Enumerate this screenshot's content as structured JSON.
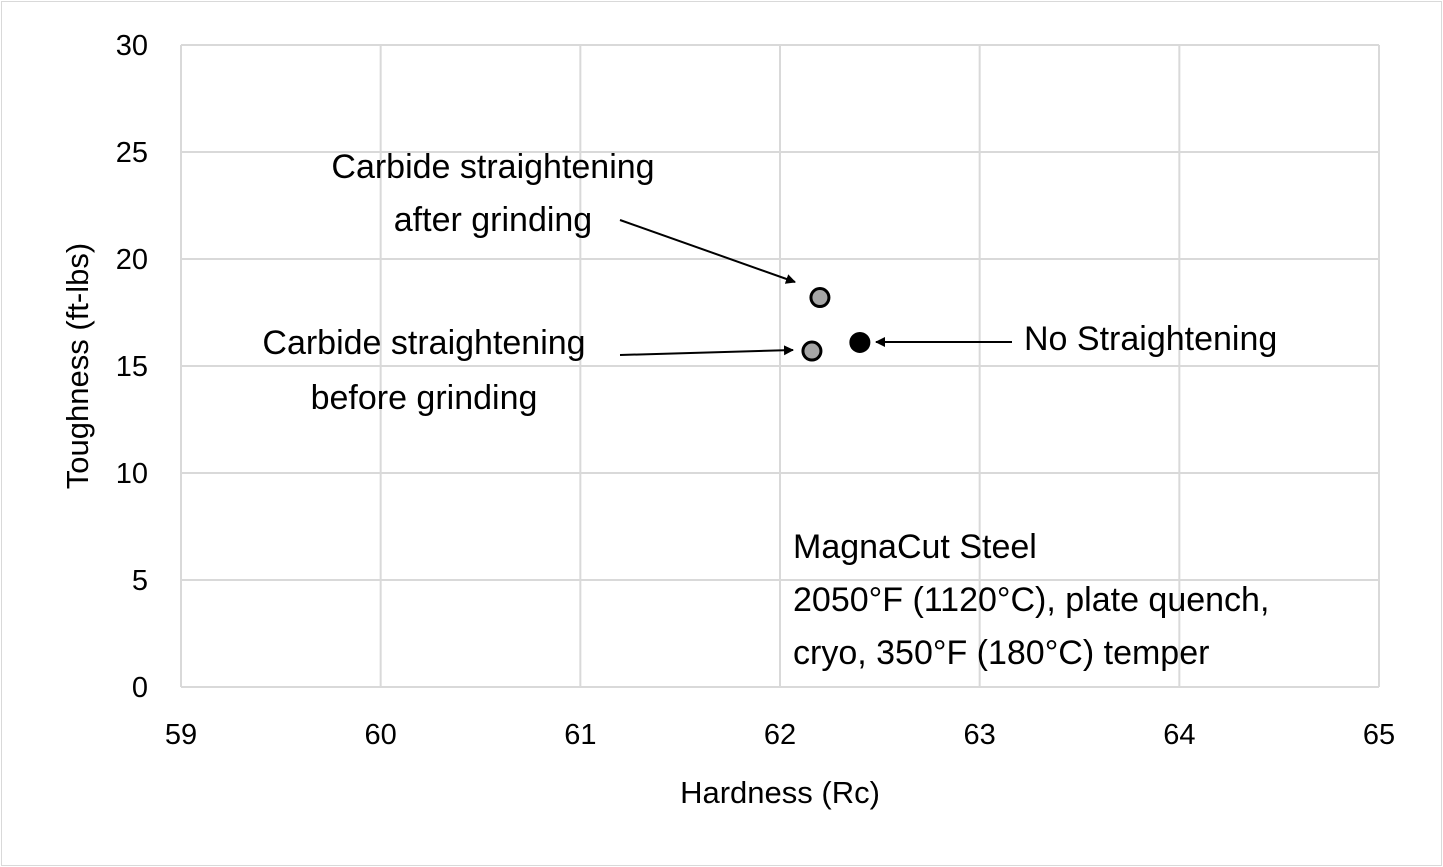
{
  "chart_data": {
    "type": "scatter",
    "title": "",
    "xlabel": "Hardness (Rc)",
    "ylabel": "Toughness (ft-lbs)",
    "xlim": [
      59,
      65
    ],
    "ylim": [
      0,
      30
    ],
    "xticks": [
      59,
      60,
      61,
      62,
      63,
      64,
      65
    ],
    "yticks": [
      0,
      5,
      10,
      15,
      20,
      25,
      30
    ],
    "grid": true,
    "series": [
      {
        "name": "Carbide straightening after grinding",
        "x": [
          62.2
        ],
        "y": [
          18.2
        ],
        "color": "#a6a6a6"
      },
      {
        "name": "Carbide straightening before grinding",
        "x": [
          62.16
        ],
        "y": [
          15.7
        ],
        "color": "#a6a6a6"
      },
      {
        "name": "No Straightening",
        "x": [
          62.4
        ],
        "y": [
          16.1
        ],
        "color": "#000000"
      }
    ],
    "annotations": [
      {
        "lines": [
          "Carbide straightening",
          "after grinding"
        ]
      },
      {
        "lines": [
          "Carbide straightening",
          "before grinding"
        ]
      },
      {
        "lines": [
          "No Straightening"
        ]
      },
      {
        "lines": [
          "MagnaCut Steel",
          "2050°F (1120°C), plate quench,",
          "cryo, 350°F (180°C) temper"
        ]
      }
    ]
  }
}
